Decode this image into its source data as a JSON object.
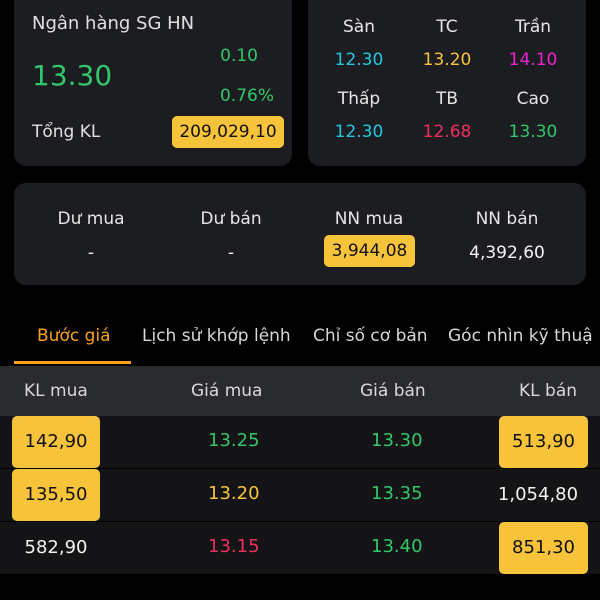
{
  "summary": {
    "bank_name": "Ngân hàng SG HN",
    "price": "13.30",
    "change": "0.10",
    "change_pct": "0.76%",
    "total_vol_label": "Tổng KL",
    "total_vol": "209,029,10"
  },
  "prices": {
    "san_label": "Sàn",
    "san": "12.30",
    "tc_label": "TC",
    "tc": "13.20",
    "tran_label": "Trần",
    "tran": "14.10",
    "thap_label": "Thấp",
    "thap": "12.30",
    "tb_label": "TB",
    "tb": "12.68",
    "cao_label": "Cao",
    "cao": "13.30"
  },
  "foreign": {
    "du_mua_label": "Dư mua",
    "du_mua": "-",
    "du_ban_label": "Dư bán",
    "du_ban": "-",
    "nn_mua_label": "NN mua",
    "nn_mua": "3,944,08",
    "nn_ban_label": "NN bán",
    "nn_ban": "4,392,60"
  },
  "tabs": [
    "Bước giá",
    "Lịch sử khớp lệnh",
    "Chỉ số cơ bản",
    "Góc nhìn kỹ thuậ"
  ],
  "table": {
    "headers": [
      "KL mua",
      "Giá mua",
      "Giá bán",
      "KL bán"
    ],
    "rows": [
      [
        "142,90",
        "13.25",
        "13.30",
        "513,90"
      ],
      [
        "135,50",
        "13.20",
        "13.35",
        "1,054,80"
      ],
      [
        "582,90",
        "13.15",
        "13.40",
        "851,30"
      ]
    ]
  },
  "colors": {
    "up": "#31c76a",
    "ref": "#f7c33a",
    "down": "#ee2f5f",
    "floor": "#24c7e0",
    "ceiling": "#ee22d2",
    "highlight": "#f7c33a",
    "accent": "#f7a21b"
  }
}
